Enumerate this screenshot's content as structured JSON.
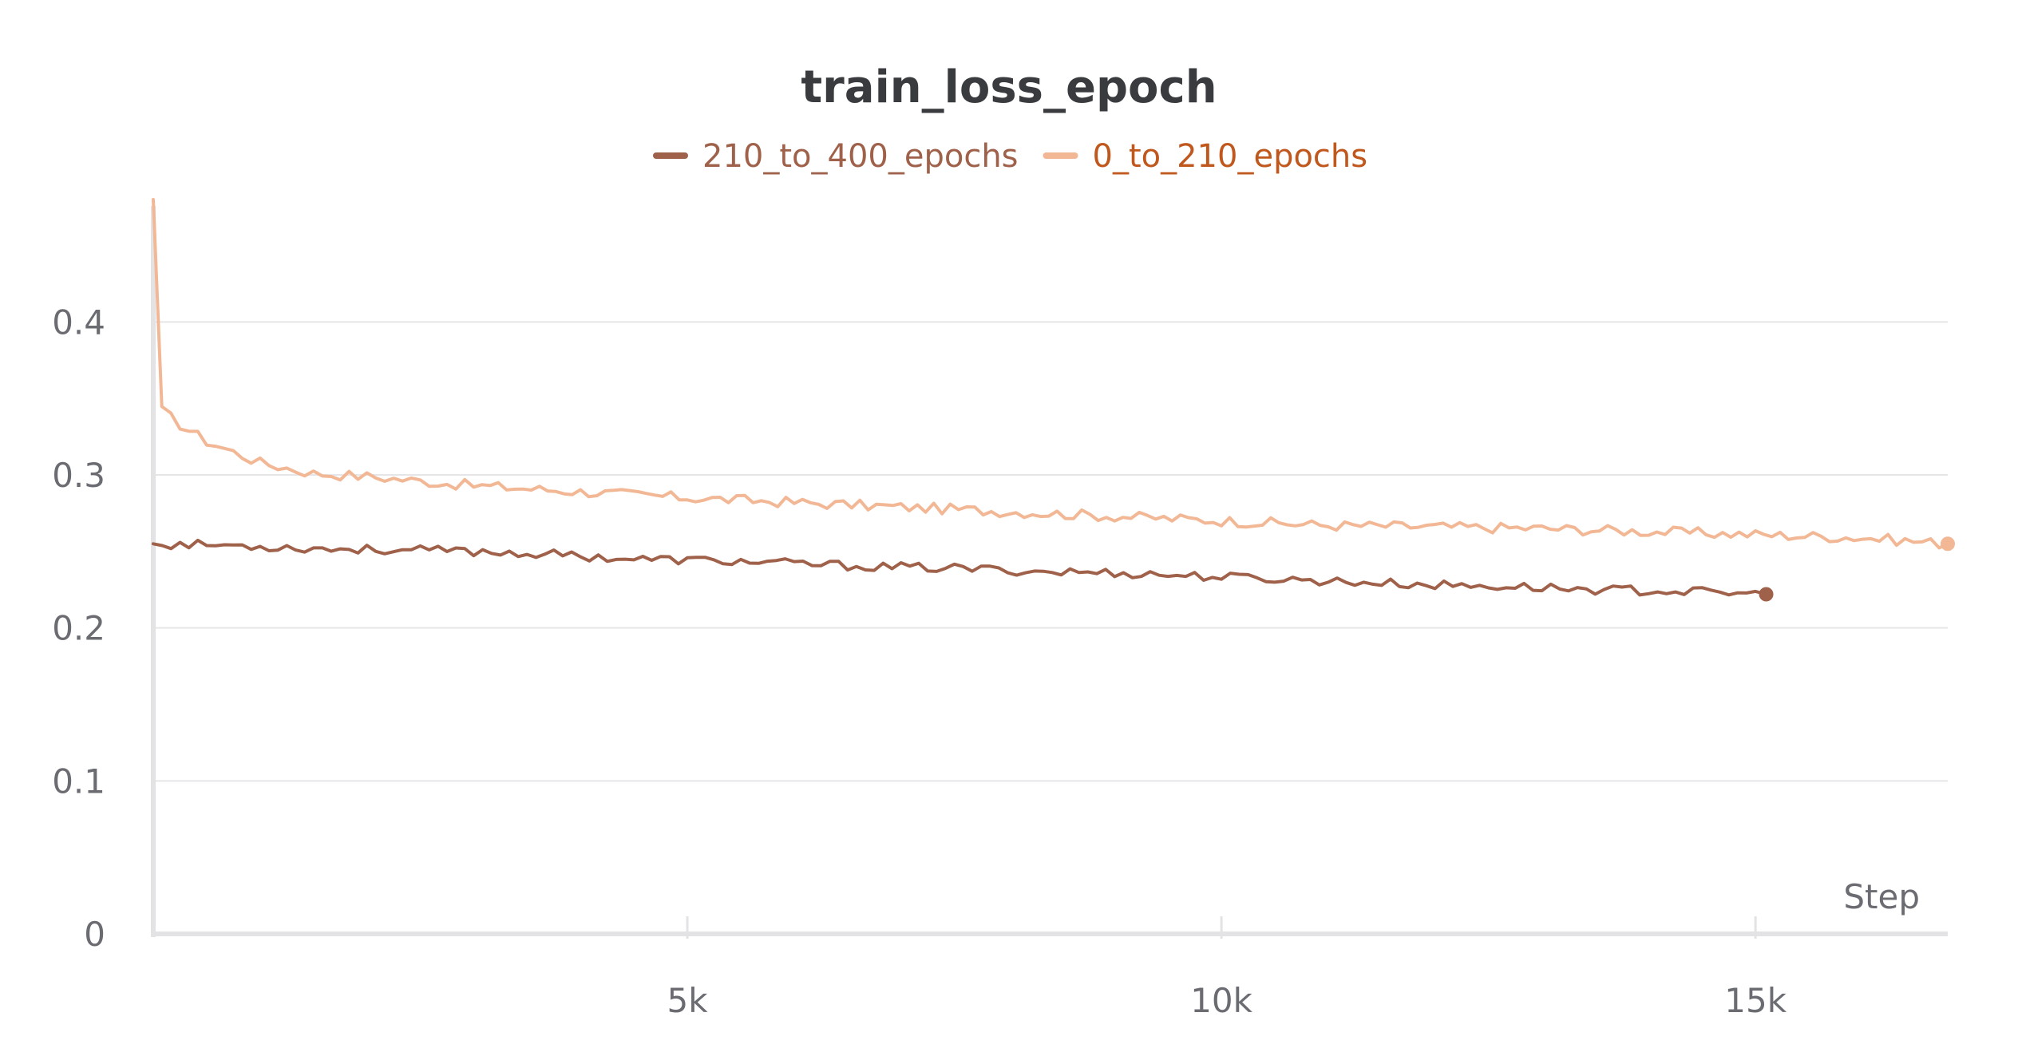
{
  "chart_data": {
    "type": "line",
    "title": "train_loss_epoch",
    "xlabel": "Step",
    "ylabel": "",
    "xlim": [
      0,
      16800
    ],
    "ylim": [
      0,
      0.48
    ],
    "grid": true,
    "legend_position": "top-center",
    "x_ticks": [
      {
        "value": 5000,
        "label": "5k"
      },
      {
        "value": 10000,
        "label": "10k"
      },
      {
        "value": 15000,
        "label": "15k"
      }
    ],
    "y_ticks": [
      {
        "value": 0,
        "label": "0"
      },
      {
        "value": 0.1,
        "label": "0.1"
      },
      {
        "value": 0.2,
        "label": "0.2"
      },
      {
        "value": 0.3,
        "label": "0.3"
      },
      {
        "value": 0.4,
        "label": "0.4"
      }
    ],
    "series": [
      {
        "name": "210_to_400_epochs",
        "color": "#a0614a",
        "legend_text_color": "#a0614a",
        "x": [
          0,
          750,
          1500,
          2250,
          3000,
          3750,
          4500,
          5250,
          6000,
          6750,
          7500,
          8250,
          9000,
          9750,
          10500,
          11250,
          12000,
          12750,
          13500,
          14250,
          15000,
          15100
        ],
        "y": [
          0.255,
          0.254,
          0.252,
          0.251,
          0.25,
          0.248,
          0.245,
          0.244,
          0.242,
          0.24,
          0.239,
          0.237,
          0.236,
          0.234,
          0.232,
          0.23,
          0.228,
          0.227,
          0.225,
          0.224,
          0.222,
          0.222
        ]
      },
      {
        "name": "0_to_210_epochs",
        "color": "#f2b896",
        "legend_text_color": "#c0581e",
        "x": [
          0,
          80,
          250,
          500,
          750,
          1000,
          1500,
          2000,
          2500,
          3000,
          4000,
          5000,
          6000,
          7000,
          8000,
          9000,
          10000,
          11000,
          12000,
          13000,
          14000,
          15000,
          16000,
          16800
        ],
        "y": [
          0.48,
          0.342,
          0.333,
          0.322,
          0.315,
          0.308,
          0.301,
          0.299,
          0.296,
          0.293,
          0.289,
          0.285,
          0.282,
          0.279,
          0.276,
          0.273,
          0.27,
          0.267,
          0.266,
          0.265,
          0.263,
          0.261,
          0.259,
          0.255
        ]
      }
    ]
  }
}
